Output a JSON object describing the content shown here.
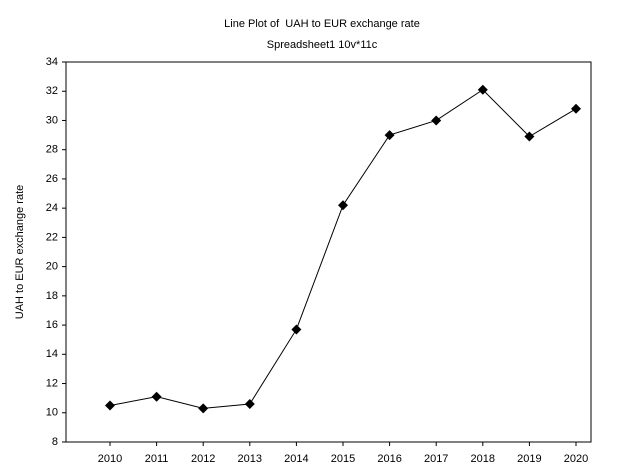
{
  "chart_data": {
    "type": "line",
    "title": "Line Plot of  UAH to EUR exchange rate",
    "subtitle": "Spreadsheet1 10v*11c",
    "y_label": "UAH to EUR exchange rate",
    "categories": [
      "2010",
      "2011",
      "2012",
      "2013",
      "2014",
      "2015",
      "2016",
      "2017",
      "2018",
      "2019",
      "2020"
    ],
    "series": [
      {
        "name": "UAH to EUR exchange rate",
        "color": "#000000",
        "values": [
          10.5,
          11.1,
          10.3,
          10.6,
          15.7,
          24.2,
          29.0,
          30.0,
          32.1,
          28.9,
          30.8
        ]
      }
    ],
    "ylim": [
      8,
      34
    ],
    "yticks": [
      8,
      10,
      12,
      14,
      16,
      18,
      20,
      22,
      24,
      26,
      28,
      30,
      32,
      34
    ],
    "grid": false
  }
}
